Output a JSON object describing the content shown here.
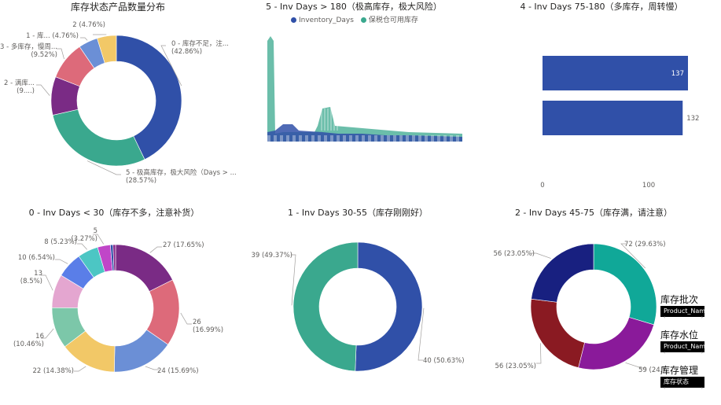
{
  "charts": [
    {
      "id": "p1",
      "type": "pie",
      "donut": true,
      "title": "库存状态产品数量分布",
      "slices": [
        {
          "label": "0 - 库存不足，注...",
          "value": 18,
          "pct": "42.86%",
          "color": "#3050a8"
        },
        {
          "label": "5 - 极高库存，极大风险（Days > ...",
          "value": 12,
          "pct": "28.57%",
          "color": "#3aa88e"
        },
        {
          "label": "2 - 满库...",
          "value": 4,
          "pct": "9....",
          "color": "#7a2b85"
        },
        {
          "label": "3 - 多库存，慢周...",
          "value": 4,
          "pct": "9.52%",
          "color": "#dd6a7a"
        },
        {
          "label": "1 - 库...",
          "value": 2,
          "pct": "4.76%",
          "color": "#6b8fd6"
        },
        {
          "label": "2",
          "value": 2,
          "pct": "4.76%",
          "color": "#f2c867"
        }
      ]
    },
    {
      "id": "p2",
      "type": "area",
      "title": "5 - Inv Days > 180（极高库存，极大风险）",
      "legend": [
        "Inventory_Days",
        "保税仓可用库存"
      ],
      "colors": [
        "#3050a8",
        "#3aa88e"
      ]
    },
    {
      "id": "p3",
      "type": "bar",
      "orientation": "horizontal",
      "title": "4 - Inv Days 75-180（多库存，周转慢）",
      "values": [
        137,
        132
      ],
      "xticks": [
        0,
        100
      ],
      "xlim": [
        0,
        137
      ],
      "color": "#3050a8"
    },
    {
      "id": "p4",
      "type": "pie",
      "donut": true,
      "title": "0 - Inv Days < 30（库存不多，注意补货）",
      "slices": [
        {
          "label": "27",
          "value": 27,
          "pct": "17.65%",
          "color": "#7a2b85"
        },
        {
          "label": "26",
          "value": 26,
          "pct": "16.99%",
          "color": "#dd6a7a"
        },
        {
          "label": "24",
          "value": 24,
          "pct": "15.69%",
          "color": "#6b8fd6"
        },
        {
          "label": "22",
          "value": 22,
          "pct": "14.38%",
          "color": "#f2c867"
        },
        {
          "label": "16",
          "value": 16,
          "pct": "10.46%",
          "color": "#7cc7a9"
        },
        {
          "label": "13",
          "value": 13,
          "pct": "8.5%",
          "color": "#e4a6d0"
        },
        {
          "label": "10",
          "value": 10,
          "pct": "6.54%",
          "color": "#5a7ee8"
        },
        {
          "label": "8",
          "value": 8,
          "pct": "5.23%",
          "color": "#4cc6c4"
        },
        {
          "label": "5",
          "value": 5,
          "pct": "3.27%",
          "color": "#c046c8"
        },
        {
          "label": "",
          "value": 1,
          "pct": "",
          "color": "#3050a8"
        },
        {
          "label": "",
          "value": 1,
          "pct": "",
          "color": "#8a2a8a"
        }
      ]
    },
    {
      "id": "p5",
      "type": "pie",
      "donut": true,
      "title": "1 - Inv Days 30-55（库存刚刚好）",
      "slices": [
        {
          "label": "40",
          "value": 40,
          "pct": "50.63%",
          "color": "#3050a8"
        },
        {
          "label": "39",
          "value": 39,
          "pct": "49.37%",
          "color": "#3aa88e"
        }
      ]
    },
    {
      "id": "p6",
      "type": "pie",
      "donut": true,
      "title": "2 - Inv Days 45-75（库存满，请注意）",
      "slices": [
        {
          "label": "72",
          "value": 72,
          "pct": "29.63%",
          "color": "#10a898"
        },
        {
          "label": "59",
          "value": 59,
          "pct": "24.",
          "color": "#8a1a9a"
        },
        {
          "label": "56",
          "value": 56,
          "pct": "23.05%",
          "color": "#8a1a22"
        },
        {
          "label": "56",
          "value": 56,
          "pct": "23.05%",
          "color": "#182080"
        }
      ]
    }
  ],
  "slicers": [
    {
      "title": "库存批次",
      "value": "Product_Nam"
    },
    {
      "title": "库存水位",
      "value": "Product_Nam"
    },
    {
      "title": "库存管理",
      "value": "库存状态"
    }
  ]
}
